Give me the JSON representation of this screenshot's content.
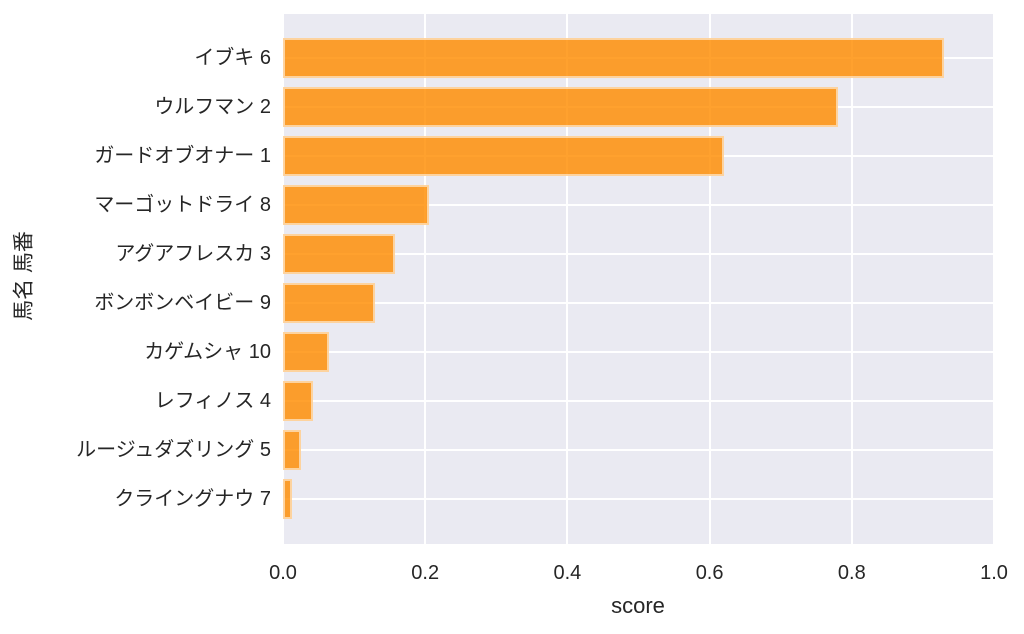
{
  "chart_data": {
    "type": "bar",
    "orientation": "horizontal",
    "xlabel": "score",
    "ylabel": "馬名 馬番",
    "categories": [
      "イブキ 6",
      "ウルフマン 2",
      "ガードオブオナー 1",
      "マーゴットドライ 8",
      "アグアフレスカ 3",
      "ボンボンベイビー 9",
      "カゲムシャ 10",
      "レフィノス 4",
      "ルージュダズリング 5",
      "クライングナウ 7"
    ],
    "values": [
      0.93,
      0.78,
      0.62,
      0.205,
      0.157,
      0.129,
      0.064,
      0.042,
      0.026,
      0.012
    ],
    "xlim": [
      0.0,
      1.0
    ],
    "xtick_labels": [
      "0.0",
      "0.2",
      "0.4",
      "0.6",
      "0.8",
      "1.0"
    ],
    "grid": true,
    "colors": {
      "bar": "#fb9e3e",
      "bar_fill_rgba": "rgba(255,140,0,0.82)",
      "bar_edge_rgba": "rgba(255,255,255,0.55)",
      "plot_background": "#eaeaf2",
      "gridline": "#ffffff",
      "text": "#262626",
      "figure_background": "#ffffff"
    }
  }
}
